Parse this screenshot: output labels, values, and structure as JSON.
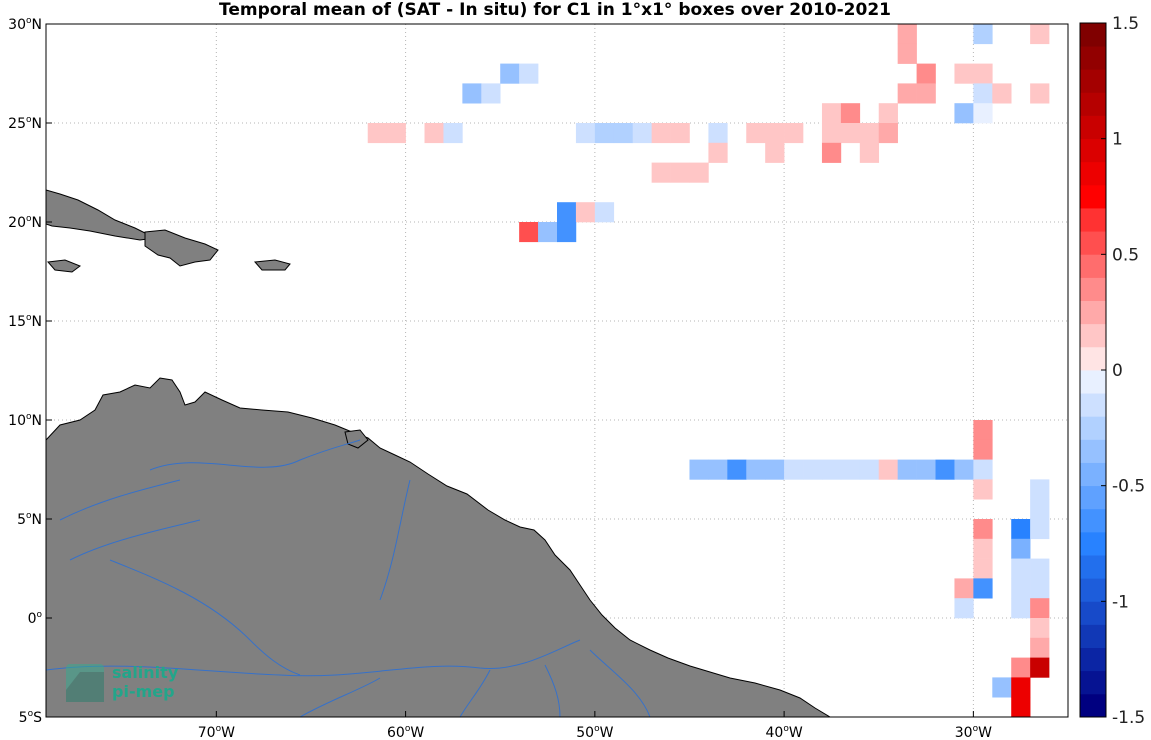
{
  "title": "Temporal mean of (SAT - In situ) for C1 in 1°x1° boxes over 2010-2021",
  "map": {
    "lon_range": [
      -79,
      -25
    ],
    "lat_range": [
      -5,
      30
    ],
    "grid": "dotted",
    "land_color": "#808080",
    "river_color": "#2a6fd6",
    "x_ticks": [
      {
        "value": -70,
        "deg": "70",
        "dir": "W"
      },
      {
        "value": -60,
        "deg": "60",
        "dir": "W"
      },
      {
        "value": -50,
        "deg": "50",
        "dir": "W"
      },
      {
        "value": -40,
        "deg": "40",
        "dir": "W"
      },
      {
        "value": -30,
        "deg": "30",
        "dir": "W"
      }
    ],
    "y_ticks": [
      {
        "value": 30,
        "deg": "30",
        "dir": "N"
      },
      {
        "value": 25,
        "deg": "25",
        "dir": "N"
      },
      {
        "value": 20,
        "deg": "20",
        "dir": "N"
      },
      {
        "value": 15,
        "deg": "15",
        "dir": "N"
      },
      {
        "value": 10,
        "deg": "10",
        "dir": "N"
      },
      {
        "value": 5,
        "deg": "5",
        "dir": "N"
      },
      {
        "value": 0,
        "deg": "0",
        "dir": ""
      },
      {
        "value": -5,
        "deg": "5",
        "dir": "S"
      }
    ]
  },
  "colorbar": {
    "range": [
      -1.5,
      1.5
    ],
    "levels": 30,
    "ticks": [
      {
        "value": 1.5,
        "label": "1.5"
      },
      {
        "value": 1,
        "label": "1"
      },
      {
        "value": 0.5,
        "label": "0.5"
      },
      {
        "value": 0,
        "label": "0"
      },
      {
        "value": -0.5,
        "label": "-0.5"
      },
      {
        "value": -1,
        "label": "-1"
      },
      {
        "value": -1.5,
        "label": "-1.5"
      }
    ]
  },
  "logo": {
    "line1": "salinity",
    "line2": "pi-mep"
  },
  "boxes": [
    [
      -34,
      29,
      0.2
    ],
    [
      -34,
      28,
      0.2
    ],
    [
      -30,
      29,
      -0.25
    ],
    [
      -27,
      29,
      0.12
    ],
    [
      -33,
      27,
      0.32
    ],
    [
      -31,
      27,
      0.1
    ],
    [
      -30,
      27,
      0.1
    ],
    [
      -34,
      26,
      0.25
    ],
    [
      -33,
      26,
      0.25
    ],
    [
      -30,
      26,
      -0.12
    ],
    [
      -29,
      26,
      0.1
    ],
    [
      -27,
      26,
      0.12
    ],
    [
      -35,
      25,
      0.15
    ],
    [
      -31,
      25,
      -0.32
    ],
    [
      -30,
      25,
      -0.08
    ],
    [
      -55,
      27,
      -0.3
    ],
    [
      -54,
      27,
      -0.2
    ],
    [
      -57,
      26,
      -0.32
    ],
    [
      -56,
      26,
      -0.12
    ],
    [
      -62,
      24,
      0.12
    ],
    [
      -61,
      24,
      0.12
    ],
    [
      -59,
      24,
      0.12
    ],
    [
      -58,
      24,
      -0.12
    ],
    [
      -51,
      24,
      -0.12
    ],
    [
      -50,
      24,
      -0.25
    ],
    [
      -49,
      24,
      -0.25
    ],
    [
      -48,
      24,
      -0.12
    ],
    [
      -47,
      24,
      0.12
    ],
    [
      -46,
      24,
      0.12
    ],
    [
      -44,
      24,
      -0.12
    ],
    [
      -42,
      24,
      0.12
    ],
    [
      -41,
      24,
      0.12
    ],
    [
      -40,
      24,
      0.12
    ],
    [
      -38,
      25,
      0.12
    ],
    [
      -37,
      25,
      0.32
    ],
    [
      -38,
      24,
      0.12
    ],
    [
      -37,
      24,
      0.12
    ],
    [
      -36,
      24,
      0.12
    ],
    [
      -35,
      24,
      0.2
    ],
    [
      -44,
      23,
      0.1
    ],
    [
      -41,
      23,
      0.15
    ],
    [
      -38,
      23,
      0.35
    ],
    [
      -36,
      23,
      0.12
    ],
    [
      -47,
      22,
      0.12
    ],
    [
      -46,
      22,
      0.12
    ],
    [
      -45,
      22,
      0.12
    ],
    [
      -52,
      20,
      -0.7
    ],
    [
      -51,
      20,
      0.15
    ],
    [
      -50,
      20,
      -0.12
    ],
    [
      -54,
      19,
      0.5
    ],
    [
      -53,
      19,
      -0.4
    ],
    [
      -52,
      19,
      -0.7
    ],
    [
      -30,
      9,
      0.35
    ],
    [
      -30,
      8,
      0.35
    ],
    [
      -45,
      7,
      -0.4
    ],
    [
      -44,
      7,
      -0.3
    ],
    [
      -43,
      7,
      -0.7
    ],
    [
      -42,
      7,
      -0.4
    ],
    [
      -41,
      7,
      -0.3
    ],
    [
      -40,
      7,
      -0.2
    ],
    [
      -39,
      7,
      -0.2
    ],
    [
      -38,
      7,
      -0.2
    ],
    [
      -37,
      7,
      -0.2
    ],
    [
      -36,
      7,
      -0.12
    ],
    [
      -35,
      7,
      0.15
    ],
    [
      -34,
      7,
      -0.3
    ],
    [
      -33,
      7,
      -0.4
    ],
    [
      -32,
      7,
      -0.7
    ],
    [
      -31,
      7,
      -0.4
    ],
    [
      -30,
      7,
      -0.1
    ],
    [
      -30,
      6,
      0.1
    ],
    [
      -27,
      6,
      -0.12
    ],
    [
      -27,
      5,
      -0.12
    ],
    [
      -30,
      4,
      0.35
    ],
    [
      -28,
      4,
      -0.75
    ],
    [
      -27,
      4,
      -0.12
    ],
    [
      -30,
      3,
      0.15
    ],
    [
      -28,
      3,
      -0.5
    ],
    [
      -30,
      2,
      0.1
    ],
    [
      -28,
      2,
      -0.2
    ],
    [
      -27,
      2,
      -0.2
    ],
    [
      -31,
      1,
      0.25
    ],
    [
      -30,
      1,
      -0.7
    ],
    [
      -28,
      1,
      -0.2
    ],
    [
      -27,
      1,
      -0.2
    ],
    [
      -31,
      0,
      -0.1
    ],
    [
      -28,
      0,
      -0.1
    ],
    [
      -27,
      0,
      0.35
    ],
    [
      -27,
      -1,
      0.12
    ],
    [
      -27,
      -2,
      0.25
    ],
    [
      -28,
      -3,
      0.35
    ],
    [
      -27,
      -3,
      1.0
    ],
    [
      -29,
      -4,
      -0.35
    ],
    [
      -28,
      -4,
      0.9
    ],
    [
      -28,
      -5,
      0.9
    ]
  ]
}
